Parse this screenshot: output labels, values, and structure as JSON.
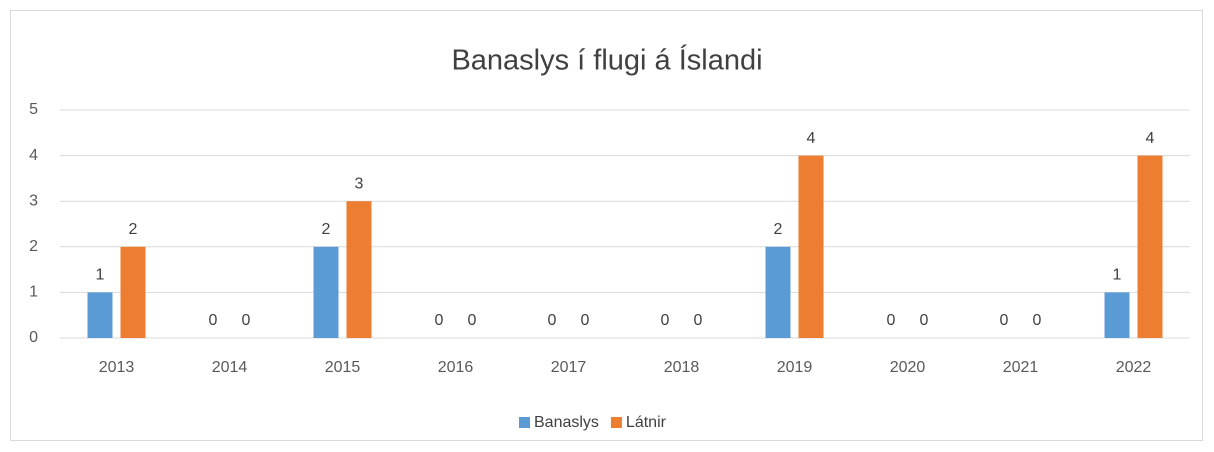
{
  "chart_data": {
    "type": "bar",
    "title": "Banaslys í flugi á Íslandi",
    "categories": [
      "2013",
      "2014",
      "2015",
      "2016",
      "2017",
      "2018",
      "2019",
      "2020",
      "2021",
      "2022"
    ],
    "series": [
      {
        "name": "Banaslys",
        "color": "#5b9bd5",
        "values": [
          1,
          0,
          2,
          0,
          0,
          0,
          2,
          0,
          0,
          1
        ]
      },
      {
        "name": "Látnir",
        "color": "#ed7d31",
        "values": [
          2,
          0,
          3,
          0,
          0,
          0,
          4,
          0,
          0,
          4
        ]
      }
    ],
    "ylim": [
      0,
      5
    ],
    "yticks": [
      0,
      1,
      2,
      3,
      4,
      5
    ],
    "grid": true,
    "legend": "bottom"
  }
}
